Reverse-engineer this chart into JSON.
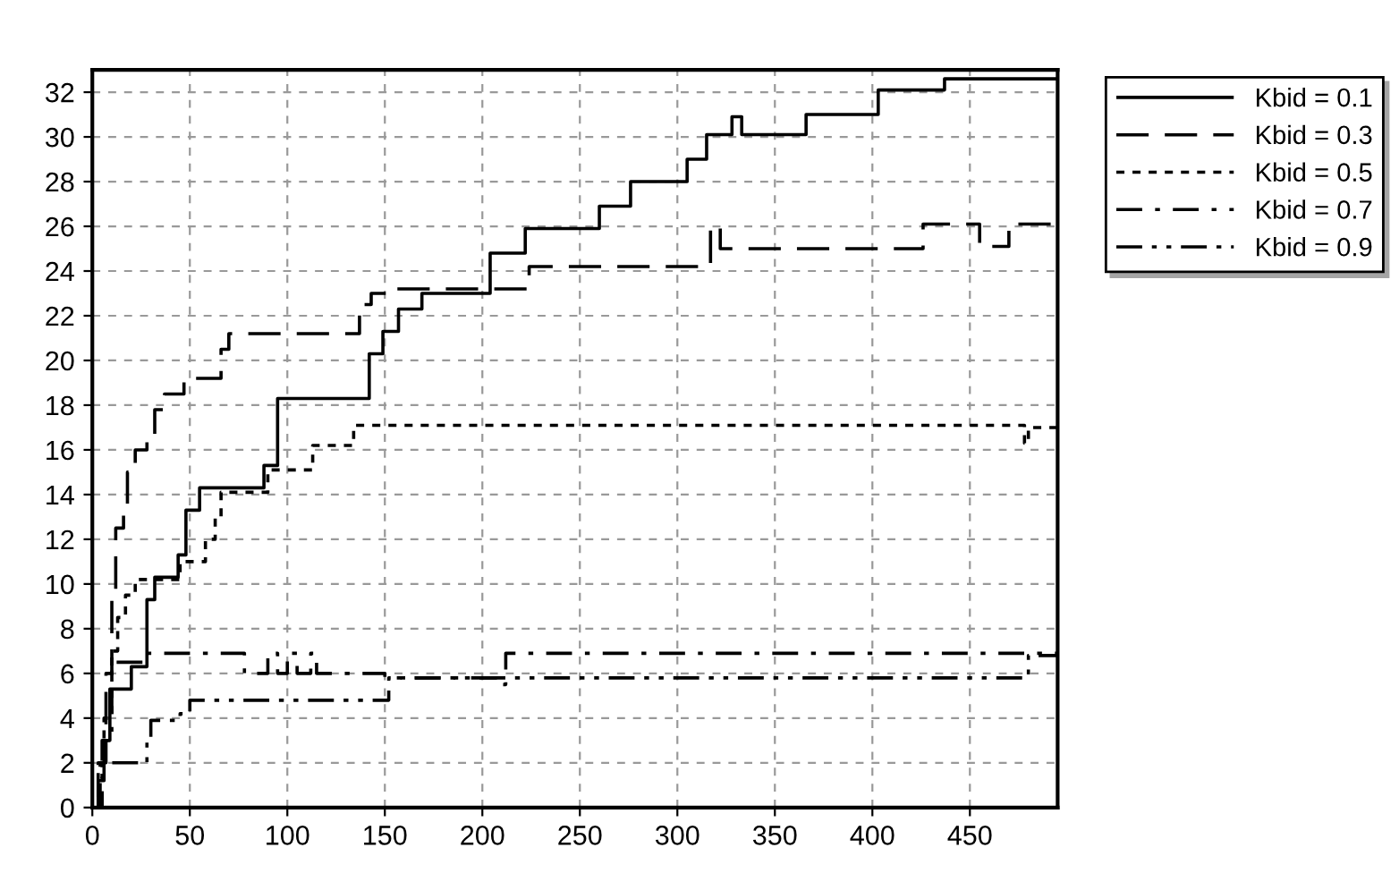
{
  "chart_data": {
    "type": "step",
    "xlim": [
      0,
      495
    ],
    "ylim": [
      0,
      33
    ],
    "xticks": [
      0,
      50,
      100,
      150,
      200,
      250,
      300,
      350,
      400,
      450
    ],
    "yticks": [
      0,
      2,
      4,
      6,
      8,
      10,
      12,
      14,
      16,
      18,
      20,
      22,
      24,
      26,
      28,
      30,
      32
    ],
    "grid": true,
    "legend": "top right",
    "series": [
      {
        "name": "Kbid = 0.1",
        "color": "#000000",
        "line_style": "solid",
        "x": [
          0,
          3,
          6,
          9,
          20,
          28,
          32,
          44,
          48,
          55,
          88,
          95,
          142,
          149,
          157,
          169,
          204,
          222,
          260,
          276,
          305,
          315,
          328,
          333,
          366,
          403,
          437,
          495
        ],
        "values": [
          0,
          1.2,
          3,
          5.3,
          6.3,
          9.3,
          10.3,
          11.3,
          13.3,
          14.3,
          15.3,
          18.3,
          20.3,
          21.3,
          22.3,
          23,
          24.8,
          25.9,
          26.9,
          28,
          29,
          30.1,
          30.9,
          30.1,
          31,
          32.1,
          32.6,
          32.6
        ]
      },
      {
        "name": "Kbid = 0.3",
        "color": "#000000",
        "line_style": "dashed",
        "x": [
          0,
          4,
          7,
          10,
          12,
          16,
          18,
          22,
          28,
          32,
          37,
          47,
          66,
          70,
          101,
          137,
          143,
          151,
          224,
          317,
          322,
          426,
          455,
          470,
          495
        ],
        "values": [
          0,
          2,
          6,
          9.5,
          12.5,
          13.5,
          15,
          16,
          16.5,
          17.8,
          18.5,
          19.2,
          20.5,
          21.2,
          21.2,
          22.5,
          23,
          23.2,
          24.2,
          26,
          25,
          26.1,
          25.1,
          26.1,
          26.1
        ]
      },
      {
        "name": "Kbid = 0.5",
        "color": "#000000",
        "line_style": "dotted",
        "x": [
          0,
          3,
          6,
          10,
          13,
          17,
          22,
          45,
          58,
          63,
          66,
          90,
          113,
          134,
          478,
          480,
          495
        ],
        "values": [
          0,
          2,
          4,
          7,
          8.5,
          9.5,
          10.2,
          11,
          12,
          13,
          14.1,
          15.1,
          16.2,
          17.1,
          16.3,
          17,
          17
        ]
      },
      {
        "name": "Kbid = 0.7",
        "color": "#000000",
        "line_style": "dashdot",
        "x": [
          0,
          5,
          10,
          27,
          75,
          78,
          90,
          95,
          100,
          105,
          112,
          115,
          150,
          208,
          212,
          495
        ],
        "values": [
          0,
          3,
          6.5,
          6.9,
          6.9,
          6,
          6.9,
          6,
          6.9,
          6,
          6.9,
          6,
          5.8,
          5.5,
          6.9,
          6.9
        ]
      },
      {
        "name": "Kbid = 0.9",
        "color": "#000000",
        "line_style": "dashdotdot",
        "x": [
          0,
          5,
          22,
          28,
          30,
          45,
          50,
          150,
          152,
          478,
          480,
          495
        ],
        "values": [
          0,
          2,
          2,
          3,
          3.9,
          4.2,
          4.8,
          4.8,
          5.8,
          5.8,
          6.8,
          6.8
        ]
      }
    ]
  }
}
